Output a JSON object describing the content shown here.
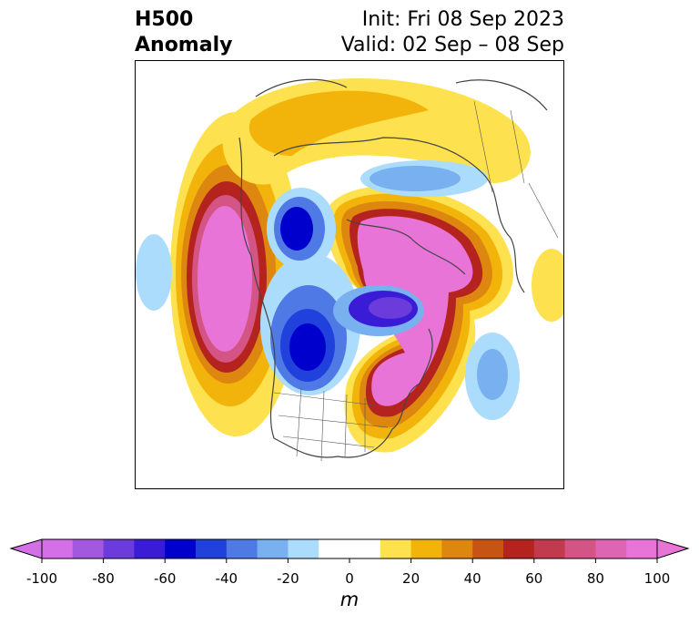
{
  "title": {
    "left_line1": "H500",
    "left_line2": "Anomaly",
    "right_line1": "Init: Fri 08 Sep 2023",
    "right_line2": "Valid: 02 Sep – 08 Sep"
  },
  "colorbar": {
    "units": "m",
    "tick_labels": [
      "-100",
      "-80",
      "-60",
      "-40",
      "-20",
      "0",
      "20",
      "40",
      "60",
      "80",
      "100"
    ],
    "colors": [
      "#d56fe8",
      "#a259e0",
      "#6b3bdc",
      "#3a1bd6",
      "#0000cc",
      "#2141dd",
      "#4f7ae6",
      "#78b0f0",
      "#acdcfc",
      "#ffffff",
      "#ffffff",
      "#fde14e",
      "#f2b40a",
      "#dd8710",
      "#c85414",
      "#b4231e",
      "#c23a4e",
      "#d45585",
      "#de64b4",
      "#e874d7"
    ]
  },
  "map": {
    "projection": "polar stereographic",
    "field": "500 hPa geopotential height anomaly"
  }
}
